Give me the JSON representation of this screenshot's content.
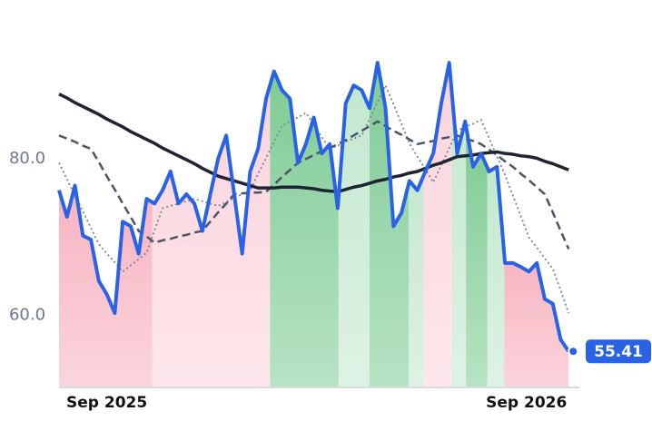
{
  "chart_data": {
    "type": "line",
    "x": [
      0,
      1,
      2,
      3,
      4,
      5,
      6,
      7,
      8,
      9,
      10,
      11,
      12,
      13,
      14,
      15,
      16,
      17,
      18,
      19,
      20,
      21,
      22,
      23,
      24,
      25,
      26,
      27,
      28,
      29,
      30,
      31,
      32,
      33,
      34,
      35,
      36,
      37,
      38,
      39,
      40,
      41,
      42,
      43,
      44,
      45,
      46,
      47,
      48,
      49,
      50,
      51,
      52,
      53,
      54,
      55,
      56,
      57,
      58,
      59,
      60,
      61,
      62,
      63,
      64
    ],
    "xlim": [
      0,
      65
    ],
    "xticks": [
      {
        "value": 6,
        "label": "Sep 2025"
      },
      {
        "value": 58.7,
        "label": "Sep 2026"
      }
    ],
    "ylim": [
      50.8,
      98
    ],
    "yticks": [
      {
        "value": 60,
        "label": "60.0"
      },
      {
        "value": 80,
        "label": "80.0"
      }
    ],
    "series": [
      {
        "color": "#2a62e6",
        "style": "solid",
        "width": 4,
        "values": [
          76.0,
          72.6,
          76.6,
          70.2,
          69.7,
          64.4,
          62.7,
          60.3,
          72.0,
          71.4,
          67.9,
          74.9,
          74.3,
          76.0,
          78.4,
          74.3,
          75.5,
          74.3,
          70.8,
          75.5,
          80.1,
          83.0,
          75.5,
          67.9,
          78.4,
          81.3,
          87.7,
          91.2,
          88.8,
          87.7,
          79.5,
          81.9,
          85.3,
          80.7,
          81.9,
          73.7,
          87.1,
          89.4,
          88.8,
          86.5,
          92.3,
          86.5,
          71.4,
          73.1,
          77.2,
          76.0,
          78.4,
          80.7,
          87.1,
          92.3,
          80.7,
          84.8,
          79.0,
          80.7,
          78.4,
          79.0,
          66.7,
          66.7,
          66.2,
          65.6,
          66.7,
          62.1,
          61.5,
          56.9,
          55.41
        ]
      },
      {
        "color": "#1e2434",
        "style": "solid",
        "width": 3.5,
        "values": [
          88.3,
          87.8,
          87.2,
          86.7,
          86.2,
          85.7,
          85.1,
          84.6,
          84.1,
          83.5,
          83.0,
          82.5,
          82.0,
          81.4,
          80.9,
          80.4,
          79.9,
          79.4,
          78.8,
          78.3,
          77.8,
          77.5,
          77.2,
          76.9,
          76.6,
          76.3,
          76.3,
          76.3,
          76.4,
          76.4,
          76.4,
          76.3,
          76.2,
          76.0,
          75.9,
          75.8,
          76.1,
          76.4,
          76.6,
          76.9,
          77.2,
          77.4,
          77.7,
          77.9,
          78.2,
          78.4,
          78.8,
          79.2,
          79.5,
          79.9,
          80.3,
          80.4,
          80.5,
          80.7,
          80.8,
          80.9,
          80.7,
          80.6,
          80.4,
          80.3,
          80.1,
          79.7,
          79.4,
          79.0,
          78.6
        ]
      },
      {
        "color": "#4a5568",
        "style": "dashed",
        "width": 2.5,
        "values": [
          83.0,
          82.6,
          82.2,
          81.7,
          81.3,
          79.6,
          77.8,
          76.1,
          74.3,
          72.6,
          70.8,
          70.1,
          69.3,
          69.6,
          69.8,
          70.1,
          70.3,
          70.6,
          70.8,
          72.0,
          73.2,
          74.3,
          75.5,
          75.6,
          75.7,
          75.7,
          75.8,
          76.7,
          77.7,
          78.6,
          79.5,
          80.0,
          80.5,
          81.0,
          81.4,
          81.9,
          82.4,
          83.0,
          83.6,
          84.2,
          84.8,
          84.2,
          83.6,
          83.1,
          82.5,
          81.9,
          82.1,
          82.3,
          82.6,
          82.8,
          83.0,
          82.6,
          82.3,
          81.9,
          81.2,
          80.5,
          79.7,
          79.0,
          78.1,
          77.3,
          76.4,
          75.5,
          73.2,
          70.8,
          68.5
        ]
      },
      {
        "color": "#7a8594",
        "style": "dotted",
        "width": 1.8,
        "values": [
          79.5,
          77.4,
          75.3,
          73.3,
          71.2,
          69.1,
          67.9,
          66.8,
          65.6,
          66.4,
          67.2,
          68.0,
          70.9,
          73.7,
          74.0,
          74.3,
          74.6,
          74.9,
          74.6,
          74.3,
          74.0,
          74.5,
          75.0,
          75.5,
          76.0,
          78.1,
          80.1,
          82.2,
          84.2,
          84.8,
          85.3,
          85.9,
          84.4,
          82.8,
          81.3,
          81.7,
          82.2,
          82.6,
          83.0,
          85.1,
          87.3,
          89.4,
          87.0,
          84.5,
          82.0,
          80.3,
          78.7,
          77.0,
          79.2,
          81.4,
          83.6,
          84.1,
          84.5,
          85.0,
          82.7,
          80.3,
          78.0,
          75.3,
          72.7,
          70.0,
          68.7,
          67.3,
          66.0,
          63.2,
          60.3
        ]
      }
    ],
    "bands": [
      {
        "x0": 0,
        "x1": 11.7,
        "color": "#f7b3c0"
      },
      {
        "x0": 11.7,
        "x1": 26.5,
        "color": "#fcd3dc"
      },
      {
        "x0": 26.5,
        "x1": 35.1,
        "color": "#7ecb95"
      },
      {
        "x0": 35.1,
        "x1": 39,
        "color": "#c3e8cf"
      },
      {
        "x0": 39,
        "x1": 43.9,
        "color": "#7ecb95"
      },
      {
        "x0": 43.9,
        "x1": 45.8,
        "color": "#c3e8cf"
      },
      {
        "x0": 45.8,
        "x1": 49.3,
        "color": "#fcd3dc"
      },
      {
        "x0": 49.3,
        "x1": 51.1,
        "color": "#c3e8cf"
      },
      {
        "x0": 51.1,
        "x1": 53.8,
        "color": "#7ecb95"
      },
      {
        "x0": 53.8,
        "x1": 55.9,
        "color": "#c3e8cf"
      },
      {
        "x0": 55.9,
        "x1": 64,
        "color": "#f7b3c0"
      }
    ]
  }
}
